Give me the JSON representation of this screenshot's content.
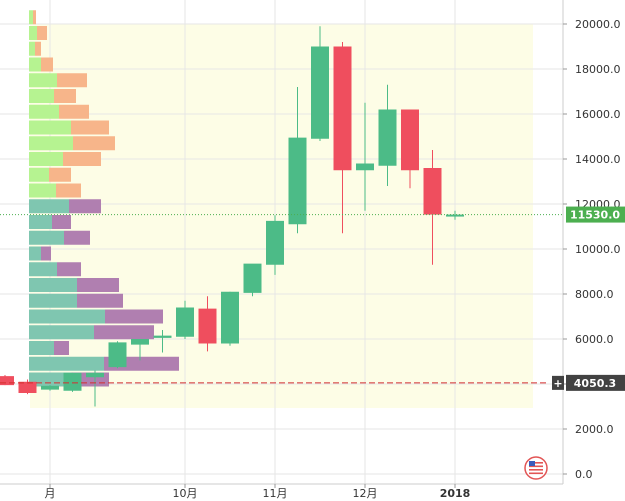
{
  "chart_data": {
    "type": "candlestick",
    "y_axis": {
      "ticks": [
        "0.0",
        "2000.0",
        "4000.0",
        "6000.0",
        "8000.0",
        "10000.0",
        "12000.0",
        "14000.0",
        "16000.0",
        "18000.0",
        "20000.0"
      ],
      "tick_values": [
        0,
        2000,
        4000,
        6000,
        8000,
        10000,
        12000,
        14000,
        16000,
        18000,
        20000
      ],
      "range": [
        -400,
        21000
      ],
      "side": "right"
    },
    "x_axis": {
      "ticks": [
        "月",
        "10月",
        "11月",
        "12月",
        "2018"
      ],
      "tick_times": [
        8.5,
        10.0,
        11.0,
        12.0,
        13.0
      ]
    },
    "candles": [
      {
        "t": 8.0,
        "open": 4350,
        "high": 4400,
        "low": 3950,
        "close": 3950
      },
      {
        "t": 8.25,
        "open": 4100,
        "high": 4200,
        "low": 3550,
        "close": 3600
      },
      {
        "t": 8.5,
        "open": 3750,
        "high": 3950,
        "low": 3700,
        "close": 3920
      },
      {
        "t": 8.75,
        "open": 3700,
        "high": 4500,
        "low": 3650,
        "close": 4500
      },
      {
        "t": 9.0,
        "open": 4300,
        "high": 4600,
        "low": 3000,
        "close": 4500
      },
      {
        "t": 9.25,
        "open": 4750,
        "high": 5900,
        "low": 4700,
        "close": 5850
      },
      {
        "t": 9.5,
        "open": 5750,
        "high": 6000,
        "low": 5050,
        "close": 6000
      },
      {
        "t": 9.75,
        "open": 6050,
        "high": 6400,
        "low": 5400,
        "close": 6150
      },
      {
        "t": 10.0,
        "open": 6100,
        "high": 7700,
        "low": 6000,
        "close": 7400
      },
      {
        "t": 10.25,
        "open": 7350,
        "high": 7900,
        "low": 5450,
        "close": 5800
      },
      {
        "t": 10.5,
        "open": 5800,
        "high": 8100,
        "low": 5700,
        "close": 8100
      },
      {
        "t": 10.75,
        "open": 8050,
        "high": 9300,
        "low": 7900,
        "close": 9350
      },
      {
        "t": 11.0,
        "open": 9300,
        "high": 11500,
        "low": 8850,
        "close": 11250
      },
      {
        "t": 11.25,
        "open": 11100,
        "high": 17200,
        "low": 10700,
        "close": 14950
      },
      {
        "t": 11.5,
        "open": 14900,
        "high": 19900,
        "low": 14800,
        "close": 19000
      },
      {
        "t": 11.75,
        "open": 19000,
        "high": 19200,
        "low": 10700,
        "close": 13500
      },
      {
        "t": 12.0,
        "open": 13500,
        "high": 16500,
        "low": 11700,
        "close": 13800
      },
      {
        "t": 12.25,
        "open": 13700,
        "high": 17300,
        "low": 12800,
        "close": 16200
      },
      {
        "t": 12.5,
        "open": 16200,
        "high": 16200,
        "low": 12700,
        "close": 13500
      },
      {
        "t": 12.75,
        "open": 13600,
        "high": 14400,
        "low": 9300,
        "close": 11530
      },
      {
        "t": 13.0,
        "open": 11530,
        "high": 11700,
        "low": 11300,
        "close": 11530
      }
    ],
    "volume_profile": [
      {
        "price": 20300,
        "buy": 4,
        "sell": 3
      },
      {
        "price": 19600,
        "buy": 8,
        "sell": 10
      },
      {
        "price": 18900,
        "buy": 6,
        "sell": 6
      },
      {
        "price": 18200,
        "buy": 12,
        "sell": 12
      },
      {
        "price": 17500,
        "buy": 28,
        "sell": 30
      },
      {
        "price": 16800,
        "buy": 25,
        "sell": 22
      },
      {
        "price": 16100,
        "buy": 30,
        "sell": 30
      },
      {
        "price": 15400,
        "buy": 42,
        "sell": 38
      },
      {
        "price": 14700,
        "buy": 44,
        "sell": 42
      },
      {
        "price": 14000,
        "buy": 34,
        "sell": 38
      },
      {
        "price": 13300,
        "buy": 20,
        "sell": 22
      },
      {
        "price": 12600,
        "buy": 27,
        "sell": 25
      },
      {
        "price": 11900,
        "buy": 40,
        "sell": 32
      },
      {
        "price": 11200,
        "buy": 23,
        "sell": 19
      },
      {
        "price": 10500,
        "buy": 35,
        "sell": 26
      },
      {
        "price": 9800,
        "buy": 12,
        "sell": 10
      },
      {
        "price": 9100,
        "buy": 28,
        "sell": 24
      },
      {
        "price": 8400,
        "buy": 48,
        "sell": 42
      },
      {
        "price": 7700,
        "buy": 48,
        "sell": 46
      },
      {
        "price": 7000,
        "buy": 76,
        "sell": 58
      },
      {
        "price": 6300,
        "buy": 65,
        "sell": 60
      },
      {
        "price": 5600,
        "buy": 25,
        "sell": 15
      },
      {
        "price": 4900,
        "buy": 75,
        "sell": 75
      },
      {
        "price": 4200,
        "buy": 42,
        "sell": 38
      }
    ],
    "last_price": {
      "value": 11530,
      "label": "11530.0",
      "color": "#4caf50"
    },
    "reference_line": {
      "value": 4050.3,
      "label": "4050.3",
      "color": "#d32f2f",
      "tag_color": "#424242"
    },
    "grid": true,
    "colors": {
      "up": "#4cbb87",
      "down": "#ef4e5e",
      "buy_upper": "#b6f391",
      "sell_upper": "#f7b58a",
      "buy_lower": "#7fc6b0",
      "sell_lower": "#b07fb0",
      "highlight_bg": "#fdfde6"
    }
  },
  "icons": {
    "flag": "us-flag-icon",
    "crosshair": "plus-icon"
  }
}
